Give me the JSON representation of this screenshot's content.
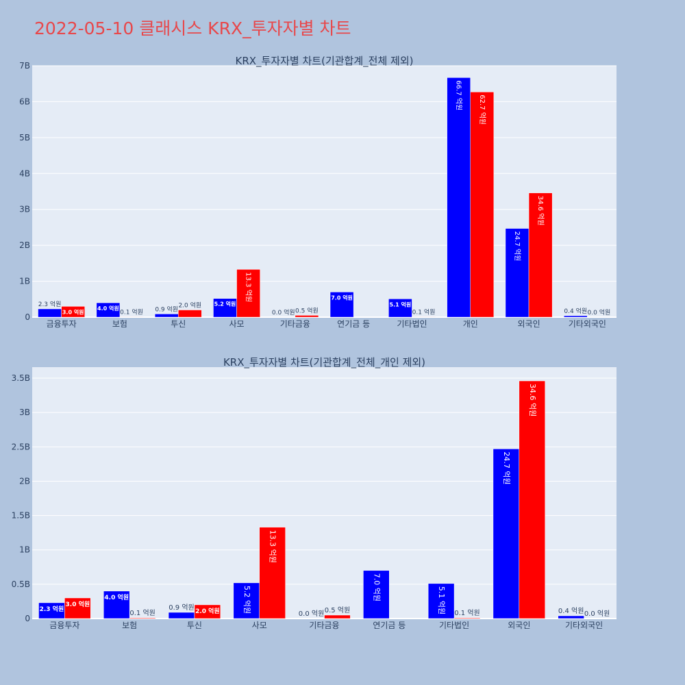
{
  "page": {
    "title": "2022-05-10 클래시스 KRX_투자자별 차트"
  },
  "colors": {
    "background": "#b0c4de",
    "plot_bg": "#e5ecf6",
    "buy": "#0000ff",
    "sell": "#ff0000",
    "title": "#e8474a",
    "text": "#2a3f5f"
  },
  "chart_data": [
    {
      "type": "bar",
      "title": "KRX_투자자별 차트(기관합계_전체 제외)",
      "categories": [
        "금융투자",
        "보험",
        "투신",
        "사모",
        "기타금융",
        "연기금 등",
        "기타법인",
        "개인",
        "외국인",
        "기타외국인"
      ],
      "series": [
        {
          "color": "#0000ff",
          "values": [
            230000000,
            400000000,
            90000000,
            520000000,
            0,
            700000000,
            510000000,
            6670000000,
            2470000000,
            40000000
          ],
          "labels": [
            "2.3 억원",
            "4.0 억원",
            "0.9 억원",
            "5.2 억원",
            "0.0 억원",
            "7.0 억원",
            "5.1 억원",
            "66.7 억원",
            "24.7 억원",
            "0.4 억원"
          ]
        },
        {
          "color": "#ff0000",
          "values": [
            300000000,
            10000000,
            200000000,
            1330000000,
            50000000,
            0,
            10000000,
            6270000000,
            3460000000,
            0
          ],
          "labels": [
            "3.0 억원",
            "0.1 억원",
            "2.0 억원",
            "13.3 억원",
            "0.5 억원",
            "",
            "0.1 억원",
            "62.7 억원",
            "34.6 억원",
            "0.0 억원"
          ]
        }
      ],
      "ylim": [
        0,
        7000000000
      ],
      "yticks": [
        0,
        1000000000,
        2000000000,
        3000000000,
        4000000000,
        5000000000,
        6000000000,
        7000000000
      ],
      "ytick_labels": [
        "0",
        "1B",
        "2B",
        "3B",
        "4B",
        "5B",
        "6B",
        "7B"
      ],
      "grid": true
    },
    {
      "type": "bar",
      "title": "KRX_투자자별 차트(기관합계_전체_개인 제외)",
      "categories": [
        "금융투자",
        "보험",
        "투신",
        "사모",
        "기타금융",
        "연기금 등",
        "기타법인",
        "외국인",
        "기타외국인"
      ],
      "series": [
        {
          "color": "#0000ff",
          "values": [
            230000000,
            400000000,
            90000000,
            520000000,
            0,
            700000000,
            510000000,
            2470000000,
            40000000
          ],
          "labels": [
            "2.3 억원",
            "4.0 억원",
            "0.9 억원",
            "5.2 억원",
            "0.0 억원",
            "7.0 억원",
            "5.1 억원",
            "24.7 억원",
            "0.4 억원"
          ]
        },
        {
          "color": "#ff0000",
          "values": [
            300000000,
            10000000,
            200000000,
            1330000000,
            50000000,
            0,
            10000000,
            3460000000,
            0
          ],
          "labels": [
            "3.0 억원",
            "0.1 억원",
            "2.0 억원",
            "13.3 억원",
            "0.5 억원",
            "",
            "0.1 억원",
            "34.6 억원",
            "0.0 억원"
          ]
        }
      ],
      "ylim": [
        0,
        3660000000
      ],
      "yticks": [
        0,
        500000000,
        1000000000,
        1500000000,
        2000000000,
        2500000000,
        3000000000,
        3500000000
      ],
      "ytick_labels": [
        "0",
        "0.5B",
        "1B",
        "1.5B",
        "2B",
        "2.5B",
        "3B",
        "3.5B"
      ],
      "grid": true
    }
  ]
}
